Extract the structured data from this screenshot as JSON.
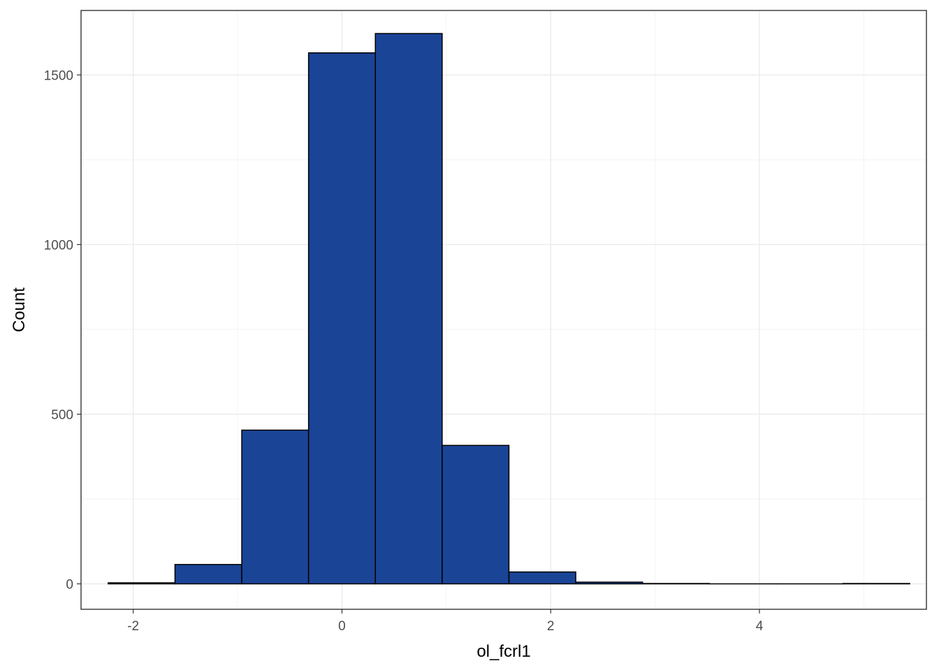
{
  "chart_data": {
    "type": "bar",
    "subtype": "histogram",
    "title": "",
    "xlabel": "ol_fcrl1",
    "ylabel": "Count",
    "xlim": [
      -2.5,
      5.6
    ],
    "ylim": [
      -75,
      1690
    ],
    "x_ticks": [
      -2,
      0,
      2,
      4
    ],
    "x_tick_labels": [
      "-2",
      "0",
      "2",
      "4"
    ],
    "y_ticks": [
      0,
      500,
      1000,
      1500
    ],
    "y_tick_labels": [
      "0",
      "500",
      "1000",
      "1500"
    ],
    "grid": true,
    "fill_color": "#1a4496",
    "edge_color": "#000000",
    "bins": [
      {
        "x0": -2.24,
        "x1": -1.6,
        "count": 3
      },
      {
        "x0": -1.6,
        "x1": -0.96,
        "count": 57
      },
      {
        "x0": -0.96,
        "x1": -0.32,
        "count": 453
      },
      {
        "x0": -0.32,
        "x1": 0.32,
        "count": 1565
      },
      {
        "x0": 0.32,
        "x1": 0.96,
        "count": 1622
      },
      {
        "x0": 0.96,
        "x1": 1.6,
        "count": 408
      },
      {
        "x0": 1.6,
        "x1": 2.24,
        "count": 35
      },
      {
        "x0": 2.24,
        "x1": 2.88,
        "count": 5
      },
      {
        "x0": 2.88,
        "x1": 3.52,
        "count": 1
      },
      {
        "x0": 3.52,
        "x1": 4.16,
        "count": 0
      },
      {
        "x0": 4.16,
        "x1": 4.8,
        "count": 0
      },
      {
        "x0": 4.8,
        "x1": 5.44,
        "count": 1
      }
    ]
  }
}
